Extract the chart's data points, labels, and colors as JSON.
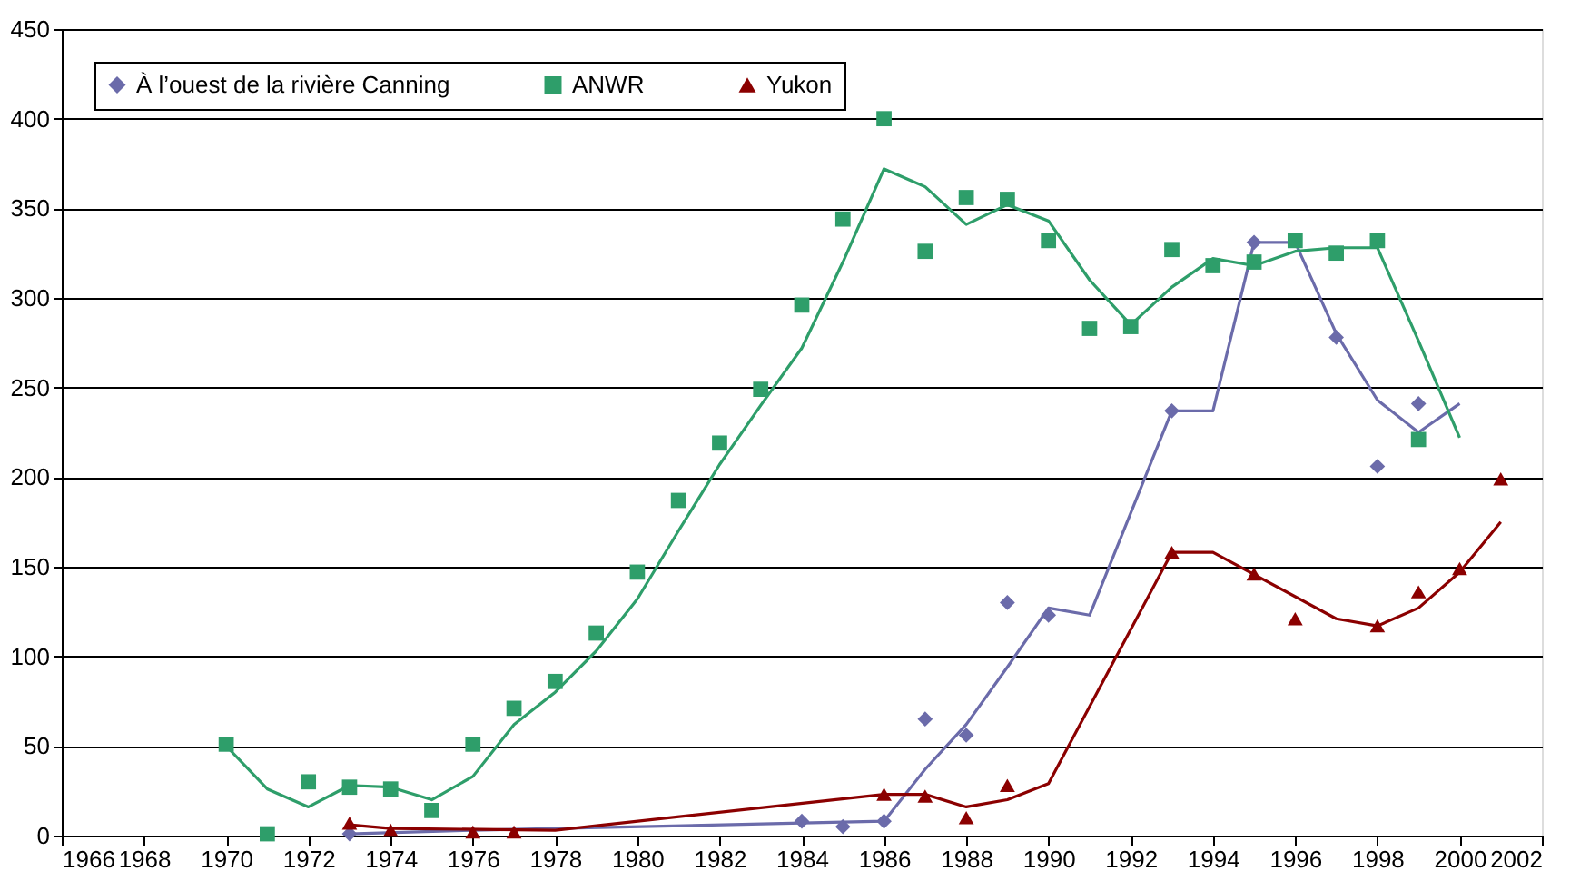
{
  "chart_data": {
    "type": "scatter",
    "xlim": [
      1966,
      2002
    ],
    "xticks": [
      1966,
      1968,
      1970,
      1972,
      1974,
      1976,
      1978,
      1980,
      1982,
      1984,
      1986,
      1988,
      1990,
      1992,
      1994,
      1996,
      1998,
      2000,
      2002
    ],
    "ylim": [
      0,
      450
    ],
    "yticks": [
      0,
      50,
      100,
      150,
      200,
      250,
      300,
      350,
      400,
      450
    ],
    "grid": "y",
    "legend": "top left",
    "series": [
      {
        "name": "À l’ouest de la rivière Canning",
        "marker": "diamond",
        "color": "#6b6baa",
        "x": [
          1973,
          1974,
          1976,
          1977,
          1984,
          1985,
          1986,
          1987,
          1988,
          1989,
          1990,
          1993,
          1995,
          1997,
          1998,
          1999
        ],
        "values": [
          1,
          null,
          null,
          null,
          8,
          5,
          8,
          65,
          56,
          130,
          123,
          237,
          331,
          278,
          206,
          241
        ]
      },
      {
        "name": "ANWR",
        "marker": "square",
        "color": "#2e9e6a",
        "x": [
          1970,
          1971,
          1972,
          1973,
          1974,
          1975,
          1976,
          1977,
          1978,
          1979,
          1980,
          1981,
          1982,
          1983,
          1984,
          1985,
          1986,
          1987,
          1988,
          1989,
          1990,
          1991,
          1992,
          1993,
          1994,
          1995,
          1996,
          1997,
          1998,
          1999
        ],
        "values": [
          51,
          1,
          30,
          27,
          26,
          14,
          51,
          71,
          86,
          113,
          147,
          187,
          219,
          249,
          296,
          344,
          400,
          326,
          356,
          355,
          332,
          283,
          284,
          327,
          318,
          320,
          332,
          325,
          332,
          221
        ]
      },
      {
        "name": "Yukon",
        "marker": "triangle",
        "color": "#8b0000",
        "x": [
          1973,
          1974,
          1976,
          1977,
          1986,
          1987,
          1988,
          1989,
          1993,
          1995,
          1996,
          1998,
          1999,
          2000,
          2001
        ],
        "values": [
          7,
          3,
          2,
          2,
          23,
          22,
          10,
          28,
          158,
          146,
          121,
          117,
          136,
          149,
          199
        ]
      },
      {
        "type": "line",
        "line_style": "solid",
        "color": "#6b6baa",
        "x": [
          1973,
          1976,
          1984,
          1986,
          1987,
          1988,
          1989,
          1990,
          1991,
          1993,
          1994,
          1995,
          1996,
          1997,
          1998,
          1999,
          2000
        ],
        "values": [
          1,
          3,
          7,
          8,
          37,
          62,
          94,
          127,
          123,
          237,
          237,
          331,
          331,
          280,
          243,
          225,
          241
        ]
      },
      {
        "type": "line",
        "line_style": "solid",
        "color": "#2e9e6a",
        "x": [
          1970,
          1971,
          1972,
          1973,
          1974,
          1975,
          1976,
          1977,
          1978,
          1979,
          1980,
          1981,
          1982,
          1983,
          1984,
          1985,
          1986,
          1987,
          1988,
          1989,
          1990,
          1991,
          1992,
          1993,
          1994,
          1995,
          1996,
          1997,
          1998,
          1999,
          2000
        ],
        "values": [
          50,
          26,
          16,
          28,
          27,
          20,
          33,
          62,
          80,
          103,
          132,
          170,
          207,
          240,
          272,
          320,
          372,
          362,
          341,
          352,
          343,
          310,
          285,
          306,
          322,
          318,
          326,
          328,
          328,
          276,
          222
        ]
      },
      {
        "type": "line",
        "line_style": "solid",
        "color": "#8b0000",
        "x": [
          1973,
          1974,
          1978,
          1986,
          1987,
          1988,
          1989,
          1990,
          1993,
          1994,
          1997,
          1998,
          1999,
          2000,
          2001
        ],
        "values": [
          6,
          4,
          3,
          23,
          23,
          16,
          20,
          29,
          158,
          158,
          121,
          117,
          127,
          147,
          175
        ]
      }
    ]
  }
}
